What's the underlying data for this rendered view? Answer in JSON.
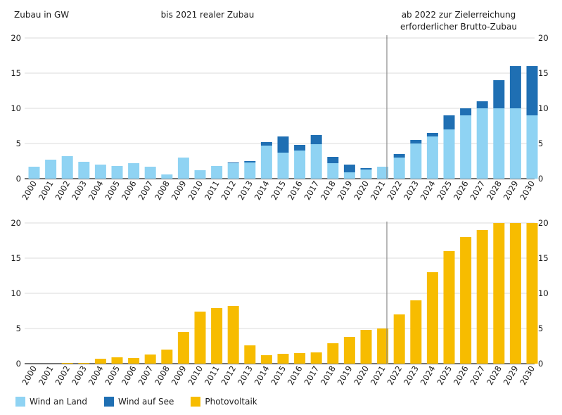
{
  "chart_data": [
    {
      "type": "bar",
      "stacked": true,
      "header_left": "Zubau in GW",
      "header_mid": "bis 2021 realer Zubau",
      "header_right_1": "ab 2022 zur Zielerreichung",
      "header_right_2": "erforderlicher Brutto-Zubau",
      "ylim": [
        0,
        20
      ],
      "yticks": [
        0,
        5,
        10,
        15,
        20
      ],
      "categories": [
        "2000",
        "2001",
        "2002",
        "2003",
        "2004",
        "2005",
        "2006",
        "2007",
        "2008",
        "2009",
        "2010",
        "2011",
        "2012",
        "2013",
        "2014",
        "2015",
        "2016",
        "2017",
        "2018",
        "2019",
        "2020",
        "2021",
        "2022",
        "2023",
        "2024",
        "2025",
        "2026",
        "2027",
        "2028",
        "2029",
        "2030"
      ],
      "series": [
        {
          "name": "Wind an Land",
          "color": "#8fd3f3",
          "values": [
            1.7,
            2.7,
            3.2,
            2.4,
            2.0,
            1.8,
            2.2,
            1.7,
            0.6,
            3.0,
            1.2,
            1.8,
            2.2,
            2.3,
            4.7,
            3.7,
            4.0,
            4.9,
            2.2,
            0.9,
            1.3,
            1.7,
            3.0,
            5.0,
            6.0,
            7.0,
            9.0,
            10.0,
            10.0,
            10.0,
            9.0
          ]
        },
        {
          "name": "Wind auf See",
          "color": "#1f6fb3",
          "values": [
            0,
            0,
            0,
            0,
            0,
            0,
            0,
            0,
            0,
            0,
            0,
            0,
            0.1,
            0.2,
            0.5,
            2.3,
            0.8,
            1.3,
            0.9,
            1.1,
            0.2,
            0,
            0.5,
            0.5,
            0.5,
            2.0,
            1.0,
            1.0,
            4.0,
            6.0,
            7.0
          ]
        }
      ]
    },
    {
      "type": "bar",
      "ylim": [
        0,
        20
      ],
      "yticks": [
        0,
        5,
        10,
        15,
        20
      ],
      "categories": [
        "2000",
        "2001",
        "2002",
        "2003",
        "2004",
        "2005",
        "2006",
        "2007",
        "2008",
        "2009",
        "2010",
        "2011",
        "2012",
        "2013",
        "2014",
        "2015",
        "2016",
        "2017",
        "2018",
        "2019",
        "2020",
        "2021",
        "2022",
        "2023",
        "2024",
        "2025",
        "2026",
        "2027",
        "2028",
        "2029",
        "2030"
      ],
      "series": [
        {
          "name": "Photovoltaik",
          "color": "#f7bc00",
          "values": [
            0,
            0,
            0.1,
            0.1,
            0.7,
            0.9,
            0.8,
            1.3,
            2.0,
            4.5,
            7.4,
            7.9,
            8.2,
            2.6,
            1.2,
            1.4,
            1.5,
            1.6,
            2.9,
            3.8,
            4.8,
            5.0,
            7.0,
            9.0,
            13.0,
            16.0,
            18.0,
            19.0,
            20.0,
            20.0,
            20.0
          ]
        }
      ]
    }
  ],
  "legend": {
    "wind_land": "Wind an Land",
    "wind_see": "Wind auf See",
    "pv": "Photovoltaik",
    "wind_land_color": "#8fd3f3",
    "wind_see_color": "#1f6fb3",
    "pv_color": "#f7bc00"
  }
}
